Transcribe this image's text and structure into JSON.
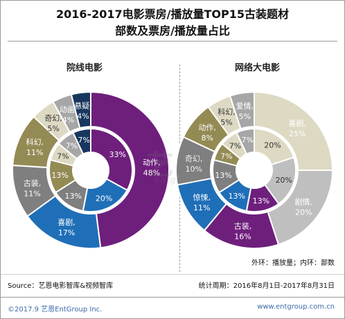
{
  "title_line1": "2016-2017电影票房/播放量TOP15古装题材",
  "title_line2": "部数及票房/播放量占比",
  "legend_note": "外环：播放量；内环：部数",
  "source": "Source：艺恩电影智库&视频智库",
  "period": "统计周期：2016年8月1日-2017年8月31日",
  "copyright": "©2017.9 艺恩EntGroup Inc.",
  "website": "www.entgroup.com.cn",
  "watermark": "艺恩",
  "watermark_sub": "entgroup",
  "chart_data": [
    {
      "type": "pie",
      "title": "院线电影",
      "outer_ring": [
        {
          "label": "动作,",
          "pct": "48%",
          "value": 48,
          "color": "#6e1f7c",
          "text_color": "#ffffff"
        },
        {
          "label": "喜剧,",
          "pct": "17%",
          "value": 17,
          "color": "#1f6fb8",
          "text_color": "#ffffff"
        },
        {
          "label": "古装,",
          "pct": "11%",
          "value": 11,
          "color": "#7f7f7f",
          "text_color": "#ffffff"
        },
        {
          "label": "科幻,",
          "pct": "11%",
          "value": 11,
          "color": "#948a54",
          "text_color": "#ffffff"
        },
        {
          "label": "奇幻,",
          "pct": "5%",
          "value": 5,
          "color": "#ddd9c3",
          "text_color": "#333333"
        },
        {
          "label": "动画,",
          "pct": "4%",
          "value": 4,
          "color": "#a6a6a6",
          "text_color": "#ffffff"
        },
        {
          "label": "悬疑,",
          "pct": "4%",
          "value": 4,
          "color": "#17375e",
          "text_color": "#ffffff"
        }
      ],
      "inner_ring": [
        {
          "pct": "33%",
          "value": 33,
          "color": "#6e1f7c",
          "text_color": "#ffffff"
        },
        {
          "pct": "20%",
          "value": 20,
          "color": "#1f6fb8",
          "text_color": "#ffffff"
        },
        {
          "pct": "13%",
          "value": 13,
          "color": "#7f7f7f",
          "text_color": "#ffffff"
        },
        {
          "pct": "13%",
          "value": 13,
          "color": "#948a54",
          "text_color": "#ffffff"
        },
        {
          "pct": "7%",
          "value": 7,
          "color": "#ddd9c3",
          "text_color": "#333333"
        },
        {
          "pct": "7%",
          "value": 7,
          "color": "#a6a6a6",
          "text_color": "#ffffff"
        },
        {
          "pct": "7%",
          "value": 7,
          "color": "#17375e",
          "text_color": "#ffffff"
        }
      ]
    },
    {
      "type": "pie",
      "title": "网络大电影",
      "outer_ring": [
        {
          "label": "喜剧,",
          "pct": "25%",
          "value": 25,
          "color": "#ddd9c3",
          "text_color": "#ffffff"
        },
        {
          "label": "剧情,",
          "pct": "20%",
          "value": 20,
          "color": "#bfbfbf",
          "text_color": "#ffffff"
        },
        {
          "label": "古装,",
          "pct": "16%",
          "value": 16,
          "color": "#6e1f7c",
          "text_color": "#ffffff"
        },
        {
          "label": "惊悚,",
          "pct": "11%",
          "value": 11,
          "color": "#1f6fb8",
          "text_color": "#ffffff"
        },
        {
          "label": "奇幻,",
          "pct": "10%",
          "value": 10,
          "color": "#7f7f7f",
          "text_color": "#ffffff"
        },
        {
          "label": "动作,",
          "pct": "8%",
          "value": 8,
          "color": "#948a54",
          "text_color": "#ffffff"
        },
        {
          "label": "科幻,",
          "pct": "5%",
          "value": 5,
          "color": "#ddd9c3",
          "text_color": "#333333"
        },
        {
          "label": "爱情,",
          "pct": "5%",
          "value": 5,
          "color": "#a6a6a6",
          "text_color": "#ffffff"
        }
      ],
      "inner_ring": [
        {
          "pct": "20%",
          "value": 20,
          "color": "#ddd9c3",
          "text_color": "#333333"
        },
        {
          "pct": "20%",
          "value": 20,
          "color": "#bfbfbf",
          "text_color": "#333333"
        },
        {
          "pct": "13%",
          "value": 13,
          "color": "#6e1f7c",
          "text_color": "#ffffff"
        },
        {
          "pct": "13%",
          "value": 13,
          "color": "#1f6fb8",
          "text_color": "#ffffff"
        },
        {
          "pct": "13%",
          "value": 13,
          "color": "#7f7f7f",
          "text_color": "#ffffff"
        },
        {
          "pct": "7%",
          "value": 7,
          "color": "#948a54",
          "text_color": "#ffffff"
        },
        {
          "pct": "7%",
          "value": 7,
          "color": "#ddd9c3",
          "text_color": "#333333"
        },
        {
          "pct": "7%",
          "value": 7,
          "color": "#a6a6a6",
          "text_color": "#ffffff"
        }
      ]
    }
  ]
}
